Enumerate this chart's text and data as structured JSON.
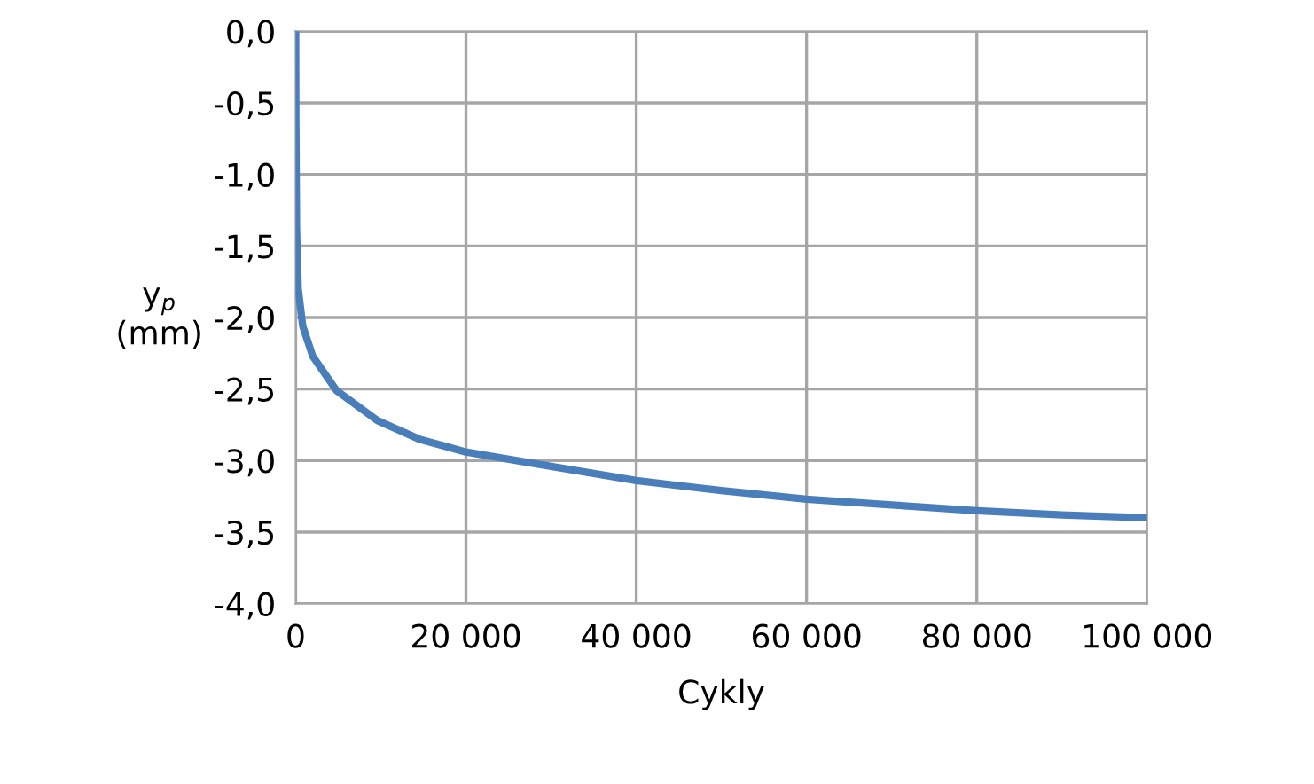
{
  "chart_data": {
    "type": "line",
    "xlabel": "Cykly",
    "ylabel": "y$_{p}$\n(mm)",
    "x": [
      0,
      20,
      100,
      300,
      830,
      2000,
      4800,
      9600,
      14500,
      20000,
      30000,
      40000,
      50000,
      60000,
      70000,
      80000,
      90000,
      100000
    ],
    "series": [
      {
        "color": "#4a7ebb",
        "values": [
          0,
          -0.6,
          -1.38,
          -1.8,
          -2.06,
          -2.27,
          -2.51,
          -2.72,
          -2.85,
          -2.94,
          -3.04,
          -3.14,
          -3.21,
          -3.27,
          -3.31,
          -3.35,
          -3.38,
          -3.4
        ]
      }
    ],
    "xlim": [
      0,
      100000
    ],
    "ylim": [
      -4.0,
      0.0
    ],
    "xticks": [
      {
        "value": 0,
        "label": "0"
      },
      {
        "value": 20000,
        "label": "20 000"
      },
      {
        "value": 40000,
        "label": "40 000"
      },
      {
        "value": 60000,
        "label": "60 000"
      },
      {
        "value": 80000,
        "label": "80 000"
      },
      {
        "value": 100000,
        "label": "100 000"
      }
    ],
    "yticks": [
      {
        "value": 0.0,
        "label": "0,0"
      },
      {
        "value": -0.5,
        "label": "-0,5"
      },
      {
        "value": -1.0,
        "label": "-1,0"
      },
      {
        "value": -1.5,
        "label": "-1,5"
      },
      {
        "value": -2.0,
        "label": "-2,0"
      },
      {
        "value": -2.5,
        "label": "-2,5"
      },
      {
        "value": -3.0,
        "label": "-3,0"
      },
      {
        "value": -3.5,
        "label": "-3,5"
      },
      {
        "value": -4.0,
        "label": "-4,0"
      }
    ],
    "grid": true,
    "legend": false,
    "marker": "none",
    "line_style": "solid"
  }
}
